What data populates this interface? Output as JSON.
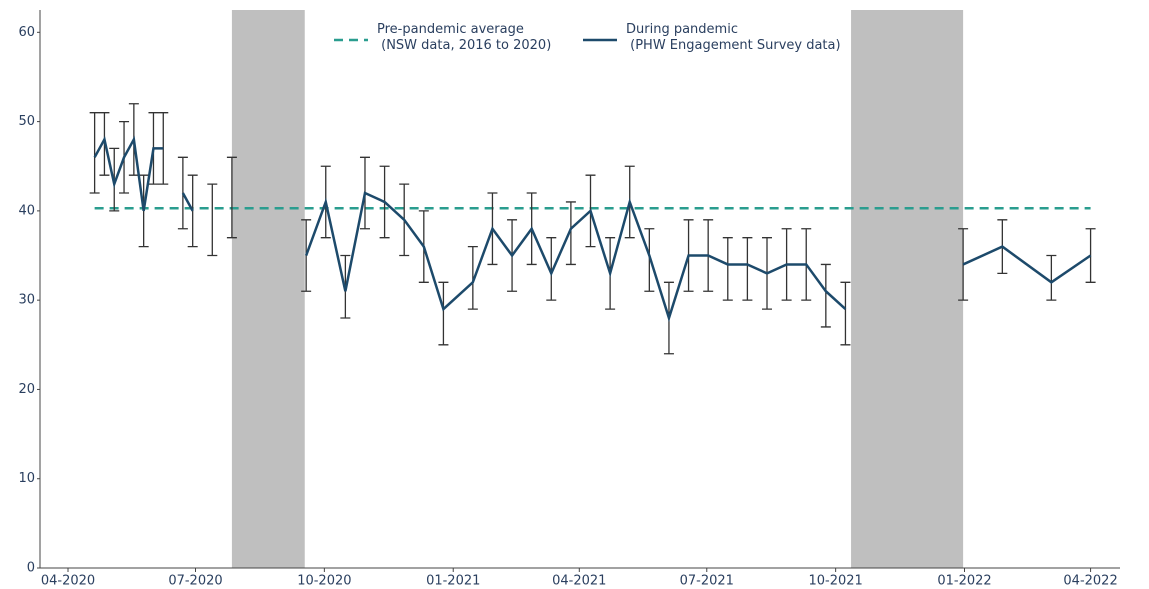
{
  "chart_data": {
    "type": "line",
    "xlim": [
      "2020-03-12",
      "2022-04-22"
    ],
    "xticks": [
      {
        "value": "2020-04-01",
        "label": "04-2020"
      },
      {
        "value": "2020-07-01",
        "label": "07-2020"
      },
      {
        "value": "2020-10-01",
        "label": "10-2020"
      },
      {
        "value": "2021-01-01",
        "label": "01-2021"
      },
      {
        "value": "2021-04-01",
        "label": "04-2021"
      },
      {
        "value": "2021-07-01",
        "label": "07-2021"
      },
      {
        "value": "2021-10-01",
        "label": "10-2021"
      },
      {
        "value": "2022-01-01",
        "label": "01-2022"
      },
      {
        "value": "2022-04-01",
        "label": "04-2022"
      }
    ],
    "ylim": [
      0,
      62.5
    ],
    "yticks": [
      0,
      10,
      20,
      30,
      40,
      50,
      60
    ],
    "grid": false,
    "legend": "top",
    "shaded_regions": [
      [
        "2020-07-27",
        "2020-09-17"
      ],
      [
        "2021-10-12",
        "2021-12-31"
      ]
    ],
    "shade_color": "#bfbfbf",
    "series": [
      {
        "name": "Pre-pandemic average\n (NSW data, 2016 to 2020)",
        "color": "#2a9d8f",
        "dash": true,
        "x": [
          "2020-04-20",
          "2022-04-01"
        ],
        "values": [
          40.3,
          40.3
        ]
      },
      {
        "name": "During pandemic\n (PHW Engagement Survey data)",
        "color": "#1d4a6b",
        "dash": false,
        "x": [
          "2020-04-20",
          "2020-04-27",
          "2020-05-04",
          "2020-05-11",
          "2020-05-18",
          "2020-05-25",
          "2020-06-01",
          "2020-06-08",
          "2020-06-15",
          "2020-06-22",
          "2020-06-29",
          "2020-07-06",
          "2020-07-13",
          "2020-07-20",
          "2020-07-27",
          "2020-08-24",
          "2020-09-18",
          "2020-10-02",
          "2020-10-16",
          "2020-10-30",
          "2020-11-13",
          "2020-11-27",
          "2020-12-11",
          "2020-12-25",
          "2021-01-15",
          "2021-01-29",
          "2021-02-12",
          "2021-02-26",
          "2021-03-12",
          "2021-03-26",
          "2021-04-09",
          "2021-04-23",
          "2021-05-07",
          "2021-05-21",
          "2021-06-04",
          "2021-06-18",
          "2021-07-02",
          "2021-07-16",
          "2021-07-30",
          "2021-08-13",
          "2021-08-27",
          "2021-09-10",
          "2021-09-24",
          "2021-10-08",
          "2021-11-15",
          "2021-12-31",
          "2022-01-28",
          "2022-03-04",
          "2022-04-01"
        ],
        "values": [
          46,
          48,
          43,
          46,
          48,
          40,
          47,
          47,
          null,
          42,
          40,
          null,
          39,
          null,
          41,
          null,
          35,
          41,
          31,
          42,
          41,
          39,
          36,
          29,
          32,
          38,
          35,
          38,
          33,
          38,
          40,
          33,
          41,
          35,
          28,
          35,
          35,
          34,
          34,
          33,
          34,
          34,
          31,
          29,
          null,
          34,
          36,
          32,
          35
        ],
        "lower": [
          42,
          44,
          40,
          42,
          44,
          36,
          43,
          43,
          null,
          38,
          36,
          null,
          35,
          null,
          37,
          null,
          31,
          37,
          28,
          38,
          37,
          35,
          32,
          25,
          29,
          34,
          31,
          34,
          30,
          34,
          36,
          29,
          37,
          31,
          24,
          31,
          31,
          30,
          30,
          29,
          30,
          30,
          27,
          25,
          null,
          30,
          33,
          30,
          32
        ],
        "upper": [
          51,
          51,
          47,
          50,
          52,
          44,
          51,
          51,
          null,
          46,
          44,
          null,
          43,
          null,
          46,
          null,
          39,
          45,
          35,
          46,
          45,
          43,
          40,
          32,
          36,
          42,
          39,
          42,
          37,
          41,
          44,
          37,
          45,
          38,
          32,
          39,
          39,
          37,
          37,
          37,
          38,
          38,
          34,
          32,
          null,
          38,
          39,
          35,
          38
        ]
      }
    ]
  }
}
